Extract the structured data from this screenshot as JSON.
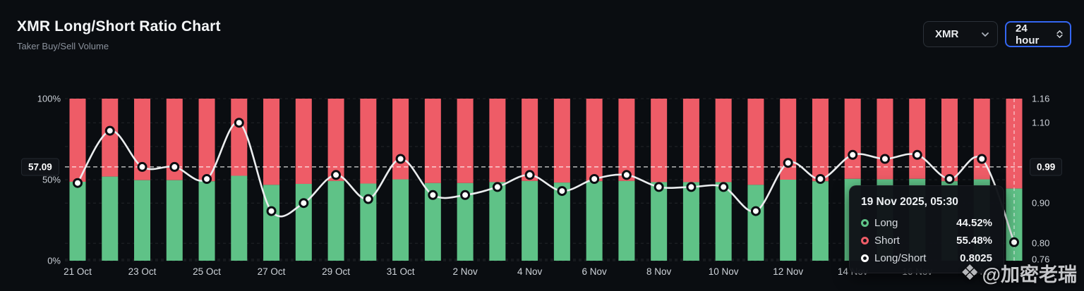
{
  "header": {
    "title": "XMR Long/Short Ratio Chart",
    "subtitle": "Taker Buy/Sell Volume"
  },
  "controls": {
    "symbol": "XMR",
    "interval": "24 hour"
  },
  "colors": {
    "background": "#0a0d11",
    "long_green": "#5fc287",
    "short_red": "#ee5c67",
    "ratio_line": "#ebedef",
    "accent_blue": "#3466f2",
    "grid": "rgba(255,255,255,0.10)",
    "crosshair": "rgba(255,255,255,0.85)"
  },
  "axes": {
    "left_ticks": [
      {
        "label": "100%",
        "value": 100
      },
      {
        "label": "50%",
        "value": 50
      },
      {
        "label": "0%",
        "value": 0
      }
    ],
    "right_ticks": [
      {
        "label": "1.16",
        "value": 1.16
      },
      {
        "label": "1.10",
        "value": 1.1
      },
      {
        "label": "0.90",
        "value": 0.9
      },
      {
        "label": "0.80",
        "value": 0.8
      },
      {
        "label": "0.76",
        "value": 0.76
      }
    ],
    "crosshair": {
      "left_label": "57.09",
      "right_label": "0.99",
      "right_value": 0.99,
      "at_category": "19 Nov"
    }
  },
  "chart_data": {
    "type": "bar",
    "subtype": "stacked-100pct-bars-with-line-overlay",
    "title": "XMR Long/Short Ratio Chart",
    "categories": [
      "21 Oct",
      "22 Oct",
      "23 Oct",
      "24 Oct",
      "25 Oct",
      "26 Oct",
      "27 Oct",
      "28 Oct",
      "29 Oct",
      "30 Oct",
      "31 Oct",
      "1 Nov",
      "2 Nov",
      "3 Nov",
      "4 Nov",
      "5 Nov",
      "6 Nov",
      "7 Nov",
      "8 Nov",
      "9 Nov",
      "10 Nov",
      "11 Nov",
      "12 Nov",
      "13 Nov",
      "14 Nov",
      "15 Nov",
      "16 Nov",
      "17 Nov",
      "18 Nov",
      "19 Nov"
    ],
    "x_tick_labels": [
      "21 Oct",
      "23 Oct",
      "25 Oct",
      "27 Oct",
      "29 Oct",
      "31 Oct",
      "2 Nov",
      "4 Nov",
      "6 Nov",
      "8 Nov",
      "10 Nov",
      "12 Nov",
      "14 Nov",
      "16 Nov",
      "18 Nov"
    ],
    "x_tick_every": 2,
    "series": [
      {
        "name": "Long",
        "unit": "%",
        "axis": "left",
        "role": "bar-bottom",
        "values": [
          48.7,
          51.9,
          49.7,
          49.7,
          49.0,
          52.4,
          46.8,
          47.4,
          49.2,
          47.6,
          50.2,
          47.9,
          47.9,
          48.5,
          49.2,
          48.2,
          49.0,
          49.2,
          48.5,
          48.5,
          48.5,
          46.8,
          50.0,
          49.0,
          50.5,
          50.2,
          50.5,
          49.0,
          50.2,
          44.52
        ]
      },
      {
        "name": "Short",
        "unit": "%",
        "axis": "left",
        "role": "bar-top",
        "values": [
          51.3,
          48.1,
          50.3,
          50.3,
          51.0,
          47.6,
          53.2,
          52.6,
          50.8,
          52.4,
          49.8,
          52.1,
          52.1,
          51.5,
          50.8,
          51.8,
          51.0,
          50.8,
          51.5,
          51.5,
          51.5,
          53.2,
          50.0,
          51.0,
          49.5,
          49.8,
          49.5,
          51.0,
          49.8,
          55.48
        ]
      },
      {
        "name": "Long/Short",
        "axis": "right",
        "role": "line",
        "values": [
          0.95,
          1.08,
          0.99,
          0.99,
          0.96,
          1.1,
          0.88,
          0.9,
          0.97,
          0.91,
          1.01,
          0.92,
          0.92,
          0.94,
          0.97,
          0.93,
          0.96,
          0.97,
          0.94,
          0.94,
          0.94,
          0.88,
          1.0,
          0.96,
          1.02,
          1.01,
          1.02,
          0.96,
          1.01,
          0.8025
        ]
      }
    ],
    "left_axis": {
      "min": 0,
      "max": 100,
      "unit": "%"
    },
    "right_axis": {
      "min": 0.76,
      "max": 1.16
    },
    "grid": "dashed-horizontal",
    "legend_position": "none"
  },
  "tooltip": {
    "date": "19 Nov 2025, 05:30",
    "rows": [
      {
        "label": "Long",
        "value": "44.52%",
        "marker_color": "#5fc287"
      },
      {
        "label": "Short",
        "value": "55.48%",
        "marker_color": "#ee5c67"
      },
      {
        "label": "Long/Short",
        "value": "0.8025",
        "marker_color": "#ffffff"
      }
    ]
  },
  "watermark": {
    "logo": "❖",
    "text": "@加密老瑞"
  }
}
